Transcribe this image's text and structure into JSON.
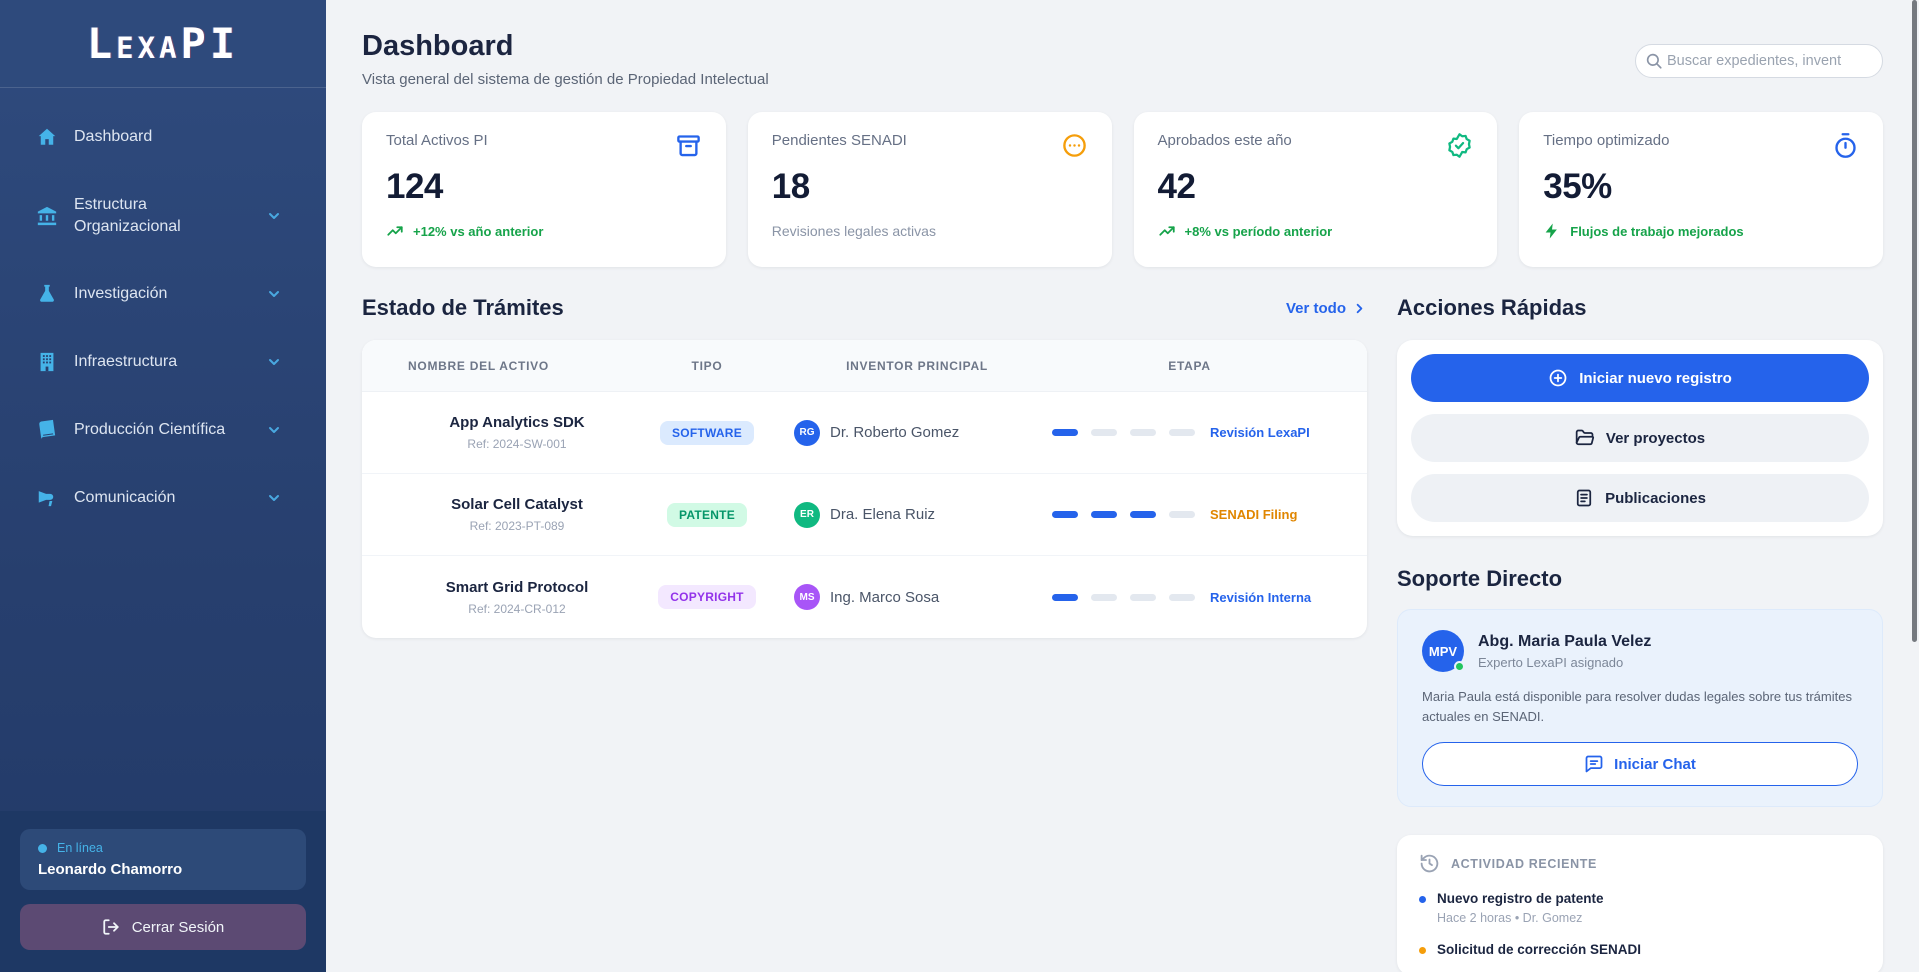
{
  "app": {
    "logo": "LexaPI"
  },
  "sidebar": {
    "items": [
      {
        "label": "Dashboard",
        "icon": "home-icon",
        "expandable": false
      },
      {
        "label": "Estructura Organizacional",
        "icon": "bank-icon",
        "expandable": true
      },
      {
        "label": "Investigación",
        "icon": "flask-icon",
        "expandable": true
      },
      {
        "label": "Infraestructura",
        "icon": "building-icon",
        "expandable": true
      },
      {
        "label": "Producción Científica",
        "icon": "book-icon",
        "expandable": true
      },
      {
        "label": "Comunicación",
        "icon": "megaphone-icon",
        "expandable": true
      }
    ],
    "user": {
      "status": "En línea",
      "name": "Leonardo Chamorro"
    },
    "logout_label": "Cerrar Sesión"
  },
  "header": {
    "title": "Dashboard",
    "subtitle": "Vista general del sistema de gestión de Propiedad Intelectual",
    "search_placeholder": "Buscar expedientes, invent"
  },
  "stats": [
    {
      "label": "Total Activos PI",
      "value": "124",
      "trend": "+12% vs año anterior",
      "icon": "archive-icon",
      "icon_color": "#2563eb",
      "trend_color": "#16a34a"
    },
    {
      "label": "Pendientes SENADI",
      "value": "18",
      "note": "Revisiones legales activas",
      "icon": "ellipsis-circle-icon",
      "icon_color": "#f59e0b"
    },
    {
      "label": "Aprobados este año",
      "value": "42",
      "trend": "+8% vs período anterior",
      "icon": "badge-check-icon",
      "icon_color": "#10b981",
      "trend_color": "#16a34a"
    },
    {
      "label": "Tiempo optimizado",
      "value": "35%",
      "trend": "Flujos de trabajo mejorados",
      "icon": "stopwatch-icon",
      "icon_color": "#2563eb",
      "trend_color": "#16a34a"
    }
  ],
  "tramites": {
    "title": "Estado de Trámites",
    "view_all": "Ver todo",
    "columns": [
      "NOMBRE DEL ACTIVO",
      "TIPO",
      "INVENTOR PRINCIPAL",
      "ETAPA"
    ],
    "rows": [
      {
        "name": "App Analytics SDK",
        "ref": "Ref: 2024-SW-001",
        "type": "SOFTWARE",
        "type_bg": "#dbeafe",
        "type_color": "#2563eb",
        "initials": "RG",
        "avatar_color": "#2563eb",
        "inventor": "Dr. Roberto Gomez",
        "progress": 1,
        "total_stages": 4,
        "stage": "Revisión LexaPI",
        "stage_color": "#2563eb"
      },
      {
        "name": "Solar Cell Catalyst",
        "ref": "Ref: 2023-PT-089",
        "type": "PATENTE",
        "type_bg": "#d1fae5",
        "type_color": "#059669",
        "initials": "ER",
        "avatar_color": "#10b981",
        "inventor": "Dra. Elena Ruiz",
        "progress": 3,
        "total_stages": 4,
        "stage": "SENADI Filing",
        "stage_color": "#e08600"
      },
      {
        "name": "Smart Grid Protocol",
        "ref": "Ref: 2024-CR-012",
        "type": "COPYRIGHT",
        "type_bg": "#f3e8ff",
        "type_color": "#9333ea",
        "initials": "MS",
        "avatar_color": "#a855f7",
        "inventor": "Ing. Marco Sosa",
        "progress": 1,
        "total_stages": 4,
        "stage": "Revisión Interna",
        "stage_color": "#2563eb"
      }
    ]
  },
  "quick_actions": {
    "title": "Acciones Rápidas",
    "buttons": [
      {
        "label": "Iniciar nuevo registro",
        "icon": "plus-circle-icon",
        "style": "primary"
      },
      {
        "label": "Ver proyectos",
        "icon": "folder-open-icon",
        "style": "light"
      },
      {
        "label": "Publicaciones",
        "icon": "document-icon",
        "style": "light"
      }
    ]
  },
  "support": {
    "title": "Soporte Directo",
    "initials": "MPV",
    "name": "Abg. Maria Paula Velez",
    "role": "Experto LexaPI asignado",
    "description": "Maria Paula está disponible para resolver dudas legales sobre tus trámites actuales en SENADI.",
    "chat_label": "Iniciar Chat"
  },
  "activity": {
    "title": "ACTIVIDAD RECIENTE",
    "items": [
      {
        "title": "Nuevo registro de patente",
        "meta": "Hace 2 horas • Dr. Gomez",
        "dot_color": "#2563eb"
      },
      {
        "title": "Solicitud de corrección SENADI",
        "meta": "",
        "dot_color": "#f59e0b"
      }
    ]
  },
  "colors": {
    "accent_blue": "#2563eb",
    "sidebar_cyan": "#45b3e8",
    "green": "#16a34a",
    "orange": "#f59e0b"
  }
}
